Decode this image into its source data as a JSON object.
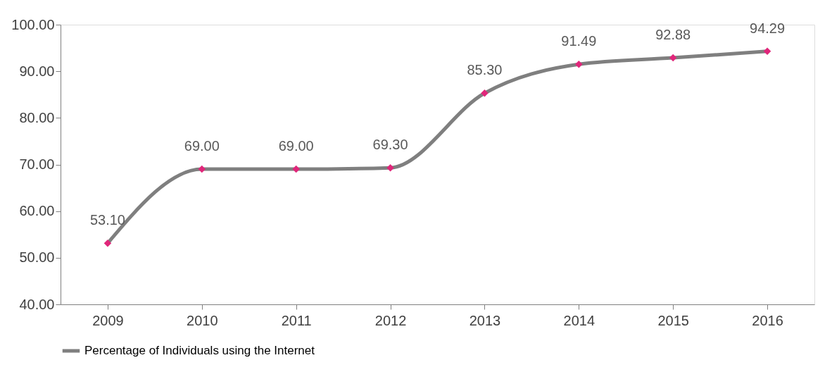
{
  "chart_data": {
    "type": "line",
    "categories": [
      "2009",
      "2010",
      "2011",
      "2012",
      "2013",
      "2014",
      "2015",
      "2016"
    ],
    "series": [
      {
        "name": "Percentage of Individuals using the Internet",
        "color": "#7f7f7f",
        "colors": [
          "#e0267a",
          "#e0267a",
          "#e0267a",
          "#e0267a",
          "#e0267a",
          "#e0267a",
          "#e0267a",
          "#e0267a"
        ],
        "values": [
          53.1,
          69.0,
          69.0,
          69.3,
          85.3,
          91.49,
          92.88,
          94.29
        ],
        "value_labels": [
          "53.10",
          "69.00",
          "69.00",
          "69.30",
          "85.30",
          "91.49",
          "92.88",
          "94.29"
        ]
      }
    ],
    "ylim": [
      40,
      100
    ],
    "yticks": [
      {
        "value": 40,
        "label": "40.00"
      },
      {
        "value": 50,
        "label": "50.00"
      },
      {
        "value": 60,
        "label": "60.00"
      },
      {
        "value": 70,
        "label": "70.00"
      },
      {
        "value": 80,
        "label": "80.00"
      },
      {
        "value": 90,
        "label": "90.00"
      },
      {
        "value": 100,
        "label": "100.00"
      }
    ],
    "grid": false,
    "legend": "bottom",
    "marker": "diamond",
    "line_style": "solid"
  }
}
